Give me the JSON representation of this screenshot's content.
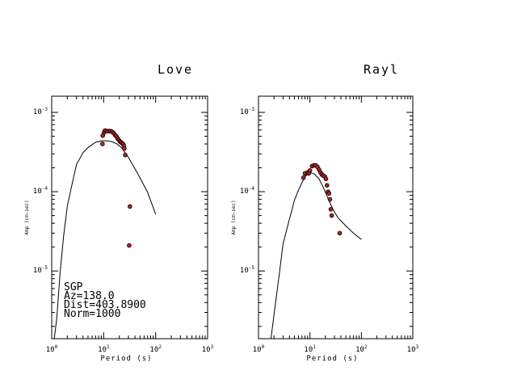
{
  "chart_data": [
    {
      "type": "scatter",
      "title": "Love",
      "xlabel": "Period (s)",
      "ylabel": "Amp (cm-sec)",
      "x_scale": "log",
      "y_scale": "log",
      "xlim": [
        1,
        1000
      ],
      "ylim": [
        1.4e-06,
        0.0016
      ],
      "x_tick_labels": [
        "10^0",
        "10^1",
        "10^2",
        "10^3"
      ],
      "y_tick_labels": [
        "10^-5",
        "10^-4",
        "10^-3"
      ],
      "annotation": [
        "SGP",
        "Az=138.0",
        "Dist=403.8900",
        "Norm=1000"
      ],
      "series": [
        {
          "kind": "line",
          "points": [
            [
              1.12,
              1.4e-06
            ],
            [
              1.25,
              2.5e-06
            ],
            [
              1.45,
              9.5e-06
            ],
            [
              1.7,
              2.8e-05
            ],
            [
              2,
              6.6e-05
            ],
            [
              2.5,
              0.00013
            ],
            [
              3,
              0.00022
            ],
            [
              4,
              0.00031
            ],
            [
              5,
              0.00036
            ],
            [
              7,
              0.00042
            ],
            [
              10,
              0.00044
            ],
            [
              14,
              0.00043
            ],
            [
              18,
              0.0004
            ],
            [
              22,
              0.00036
            ],
            [
              30,
              0.00027
            ],
            [
              45,
              0.00017
            ],
            [
              70,
              9.8e-05
            ],
            [
              100,
              5.2e-05
            ]
          ]
        },
        {
          "kind": "points",
          "points": [
            [
              9.5,
              0.0004
            ],
            [
              9.6,
              0.00051
            ],
            [
              10.2,
              0.00056
            ],
            [
              10.6,
              0.00059
            ],
            [
              11.5,
              0.00058
            ],
            [
              12.5,
              0.00058
            ],
            [
              13.5,
              0.00058
            ],
            [
              14.5,
              0.00057
            ],
            [
              15.5,
              0.00055
            ],
            [
              16.5,
              0.00052
            ],
            [
              17.5,
              0.0005
            ],
            [
              18.5,
              0.00047
            ],
            [
              19.5,
              0.00045
            ],
            [
              20.5,
              0.00043
            ],
            [
              21.5,
              0.00042
            ],
            [
              22.5,
              0.00041
            ],
            [
              23.5,
              0.0004
            ],
            [
              24.5,
              0.00038
            ],
            [
              25,
              0.00035
            ],
            [
              26,
              0.00029
            ],
            [
              32,
              6.5e-05
            ],
            [
              31,
              2.1e-05
            ]
          ]
        }
      ]
    },
    {
      "type": "scatter",
      "title": "Rayl",
      "xlabel": "Period (s)",
      "ylabel": "Amp (cm-sec)",
      "x_scale": "log",
      "y_scale": "log",
      "xlim": [
        1,
        1000
      ],
      "ylim": [
        1.4e-06,
        0.0016
      ],
      "x_tick_labels": [
        "10^0",
        "10^1",
        "10^2",
        "10^3"
      ],
      "y_tick_labels": [
        "10^-5",
        "10^-4",
        "10^-3"
      ],
      "series": [
        {
          "kind": "line",
          "points": [
            [
              1.75,
              1.4e-06
            ],
            [
              2,
              2.8e-06
            ],
            [
              2.5,
              8.5e-06
            ],
            [
              3,
              2.2e-05
            ],
            [
              4,
              4.5e-05
            ],
            [
              5,
              7.8e-05
            ],
            [
              6,
              0.000105
            ],
            [
              7,
              0.00013
            ],
            [
              8,
              0.000155
            ],
            [
              10,
              0.000175
            ],
            [
              12,
              0.000168
            ],
            [
              15,
              0.000145
            ],
            [
              18,
              0.000115
            ],
            [
              22,
              8.5e-05
            ],
            [
              28,
              6e-05
            ],
            [
              35,
              4.7e-05
            ],
            [
              50,
              3.7e-05
            ],
            [
              70,
              3e-05
            ],
            [
              100,
              2.5e-05
            ]
          ]
        },
        {
          "kind": "points",
          "points": [
            [
              7.5,
              0.00015
            ],
            [
              8,
              0.00017
            ],
            [
              9,
              0.000175
            ],
            [
              9.5,
              0.00017
            ],
            [
              10,
              0.000185
            ],
            [
              11,
              0.00021
            ],
            [
              12,
              0.000215
            ],
            [
              13,
              0.000215
            ],
            [
              14,
              0.000205
            ],
            [
              15,
              0.00019
            ],
            [
              16,
              0.000175
            ],
            [
              17,
              0.000165
            ],
            [
              18,
              0.00016
            ],
            [
              19.5,
              0.000155
            ],
            [
              20.5,
              0.000145
            ],
            [
              21.5,
              0.00012
            ],
            [
              22.5,
              0.0001
            ],
            [
              23.5,
              9.5e-05
            ],
            [
              24.5,
              8e-05
            ],
            [
              25.5,
              6e-05
            ],
            [
              26.5,
              5e-05
            ],
            [
              38,
              3e-05
            ]
          ]
        }
      ]
    }
  ]
}
